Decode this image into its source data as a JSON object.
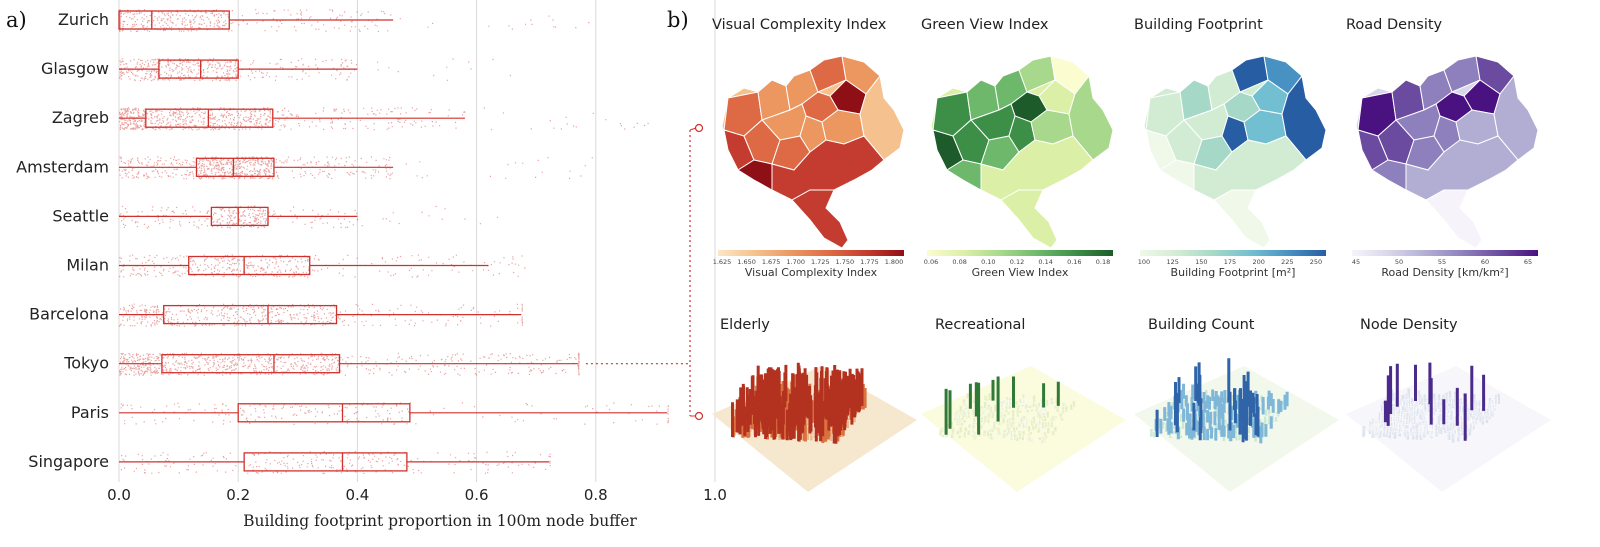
{
  "panel_labels": {
    "a": "a)",
    "b": "b)"
  },
  "colors": {
    "box": "#d0312d",
    "grid": "#d9d9d9",
    "connector": "#d0312d"
  },
  "chart_data": [
    {
      "type": "box",
      "title": "",
      "xlabel": "Building footprint proportion in 100m node buffer",
      "ylabel": "",
      "xlim": [
        0,
        1.0
      ],
      "xticks": [
        "0.0",
        "0.2",
        "0.4",
        "0.6",
        "0.8",
        "1.0"
      ],
      "grid": true,
      "categories": [
        "Zurich",
        "Glasgow",
        "Zagreb",
        "Amsterdam",
        "Seattle",
        "Milan",
        "Barcelona",
        "Tokyo",
        "Paris",
        "Singapore"
      ],
      "series": [
        {
          "min": 0.0,
          "q1": 0.0,
          "median": 0.055,
          "q3": 0.185,
          "max": 0.46,
          "jitter_max": 0.8,
          "density": 0.55
        },
        {
          "min": 0.0,
          "q1": 0.067,
          "median": 0.137,
          "q3": 0.2,
          "max": 0.4,
          "jitter_max": 0.7,
          "density": 0.5
        },
        {
          "min": 0.0,
          "q1": 0.045,
          "median": 0.15,
          "q3": 0.258,
          "max": 0.58,
          "jitter_max": 0.9,
          "density": 0.85
        },
        {
          "min": 0.0,
          "q1": 0.13,
          "median": 0.192,
          "q3": 0.26,
          "max": 0.46,
          "jitter_max": 0.87,
          "density": 0.75
        },
        {
          "min": 0.0,
          "q1": 0.155,
          "median": 0.2,
          "q3": 0.25,
          "max": 0.4,
          "jitter_max": 0.65,
          "density": 0.35
        },
        {
          "min": 0.0,
          "q1": 0.117,
          "median": 0.21,
          "q3": 0.32,
          "max": 0.62,
          "jitter_max": 0.68,
          "density": 0.45
        },
        {
          "min": 0.0,
          "q1": 0.075,
          "median": 0.25,
          "q3": 0.365,
          "max": 0.675,
          "jitter_max": 0.675,
          "density": 0.6
        },
        {
          "min": 0.0,
          "q1": 0.072,
          "median": 0.26,
          "q3": 0.37,
          "max": 0.77,
          "jitter_max": 0.77,
          "density": 1.0
        },
        {
          "min": 0.0,
          "q1": 0.2,
          "median": 0.375,
          "q3": 0.488,
          "max": 0.92,
          "jitter_max": 0.92,
          "density": 0.25
        },
        {
          "min": 0.0,
          "q1": 0.21,
          "median": 0.375,
          "q3": 0.483,
          "max": 0.722,
          "jitter_max": 0.722,
          "density": 0.3
        }
      ]
    }
  ],
  "panel_b": {
    "maps": [
      {
        "title": "Visual Complexity Index",
        "colorbar_label": "Visual Complexity Index",
        "ticks": [
          "1.625",
          "1.650",
          "1.675",
          "1.700",
          "1.725",
          "1.750",
          "1.775",
          "1.800"
        ],
        "palette": [
          "#fbe7c6",
          "#f5c18e",
          "#ec9660",
          "#dd6a44",
          "#c43c2f",
          "#8f0f16"
        ]
      },
      {
        "title": "Green View Index",
        "colorbar_label": "Green View Index",
        "ticks": [
          "0.06",
          "0.08",
          "0.10",
          "0.12",
          "0.14",
          "0.16",
          "0.18"
        ],
        "palette": [
          "#fbfcd0",
          "#dbefa7",
          "#a8d88b",
          "#6db86b",
          "#3d8f48",
          "#1e5b2a"
        ]
      },
      {
        "title": "Building Footprint",
        "colorbar_label": "Building Footprint [m²]",
        "ticks": [
          "100",
          "125",
          "150",
          "175",
          "200",
          "225",
          "250"
        ],
        "palette": [
          "#f0f8e9",
          "#d2ecd3",
          "#a5d8c7",
          "#72bfd2",
          "#4891c3",
          "#275ea3"
        ]
      },
      {
        "title": "Road Density",
        "colorbar_label": "Road Density [km/km²]",
        "ticks": [
          "45",
          "50",
          "55",
          "60",
          "65"
        ],
        "palette": [
          "#f6f4fa",
          "#d8d6ea",
          "#b2aed3",
          "#8e80bc",
          "#6a4ba0",
          "#4a1180"
        ]
      }
    ],
    "surfaces": [
      {
        "title": "Elderly",
        "palette": [
          "#f6e7cf",
          "#eab98a",
          "#d9723f",
          "#b3311f"
        ]
      },
      {
        "title": "Recreational",
        "palette": [
          "#fbfbde",
          "#e7efc0",
          "#8fc47e",
          "#2f7a37"
        ]
      },
      {
        "title": "Building Count",
        "palette": [
          "#f3f8ec",
          "#cbe8d0",
          "#7fb7d8",
          "#2f64a8"
        ]
      },
      {
        "title": "Node Density",
        "palette": [
          "#f7f7fb",
          "#dde2ee",
          "#9aa6cc",
          "#4a2a8a"
        ]
      }
    ]
  }
}
